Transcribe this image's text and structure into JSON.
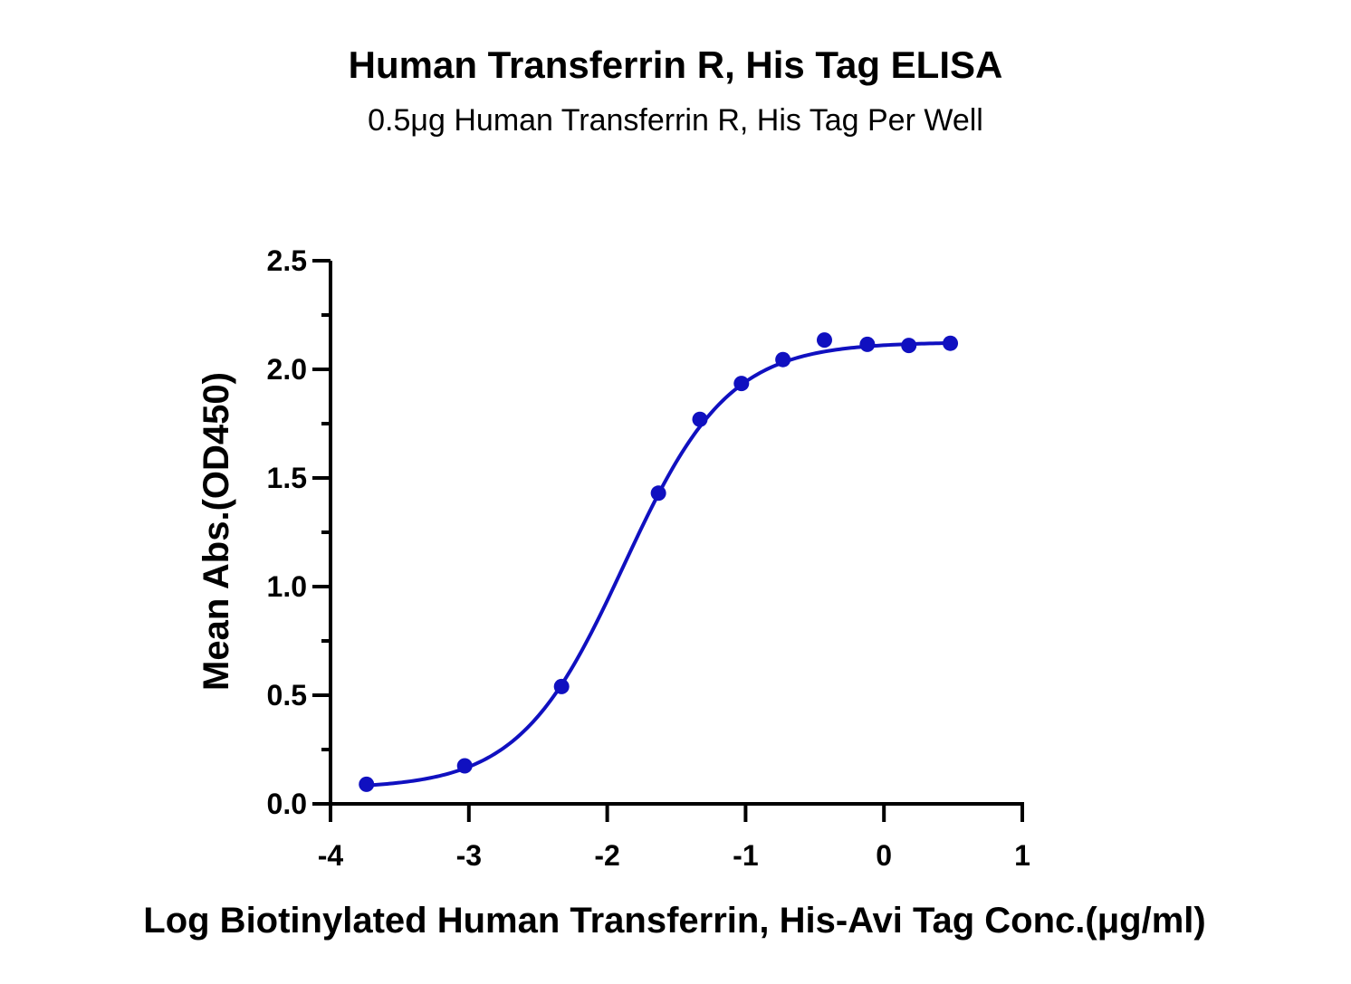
{
  "chart_data": {
    "type": "scatter",
    "title": "Human Transferrin R, His Tag ELISA",
    "subtitle": "0.5μg Human Transferrin R, His Tag Per Well",
    "xlabel": "Log Biotinylated Human Transferrin, His-Avi Tag Conc.(μg/ml)",
    "ylabel": "Mean Abs.(OD450)",
    "xlim": [
      -4,
      1
    ],
    "ylim": [
      0,
      2.5
    ],
    "xticks": [
      "-4",
      "-3",
      "-2",
      "-1",
      "0",
      "1"
    ],
    "yticks": [
      "0.0",
      "0.5",
      "1.0",
      "1.5",
      "2.0",
      "2.5"
    ],
    "grid": false,
    "series": [
      {
        "color": "#1010c0",
        "points": [
          {
            "x": -3.74,
            "y": 0.09
          },
          {
            "x": -3.03,
            "y": 0.175
          },
          {
            "x": -2.33,
            "y": 0.54
          },
          {
            "x": -1.63,
            "y": 1.43
          },
          {
            "x": -1.33,
            "y": 1.77
          },
          {
            "x": -1.03,
            "y": 1.935
          },
          {
            "x": -0.73,
            "y": 2.045
          },
          {
            "x": -0.43,
            "y": 2.135
          },
          {
            "x": -0.12,
            "y": 2.115
          },
          {
            "x": 0.18,
            "y": 2.11
          },
          {
            "x": 0.48,
            "y": 2.12
          }
        ],
        "fit": {
          "bottom": 0.07,
          "top": 2.125,
          "log_ec50": -1.88,
          "hill": 1.15,
          "x_range": [
            -3.74,
            0.48
          ]
        }
      }
    ]
  }
}
